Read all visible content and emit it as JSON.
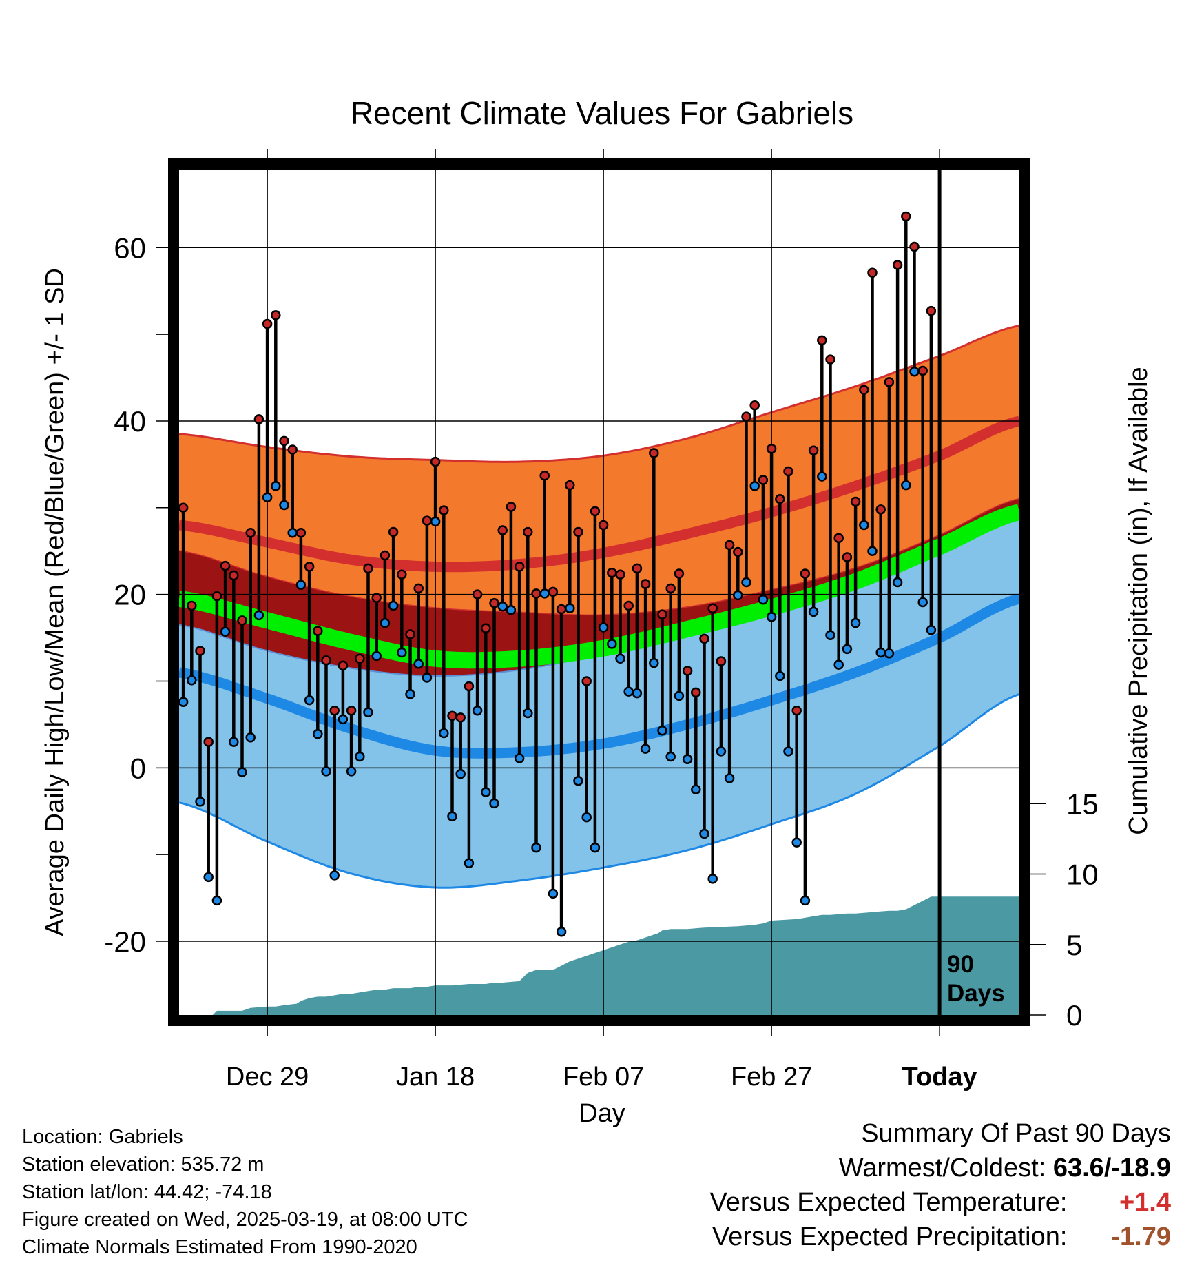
{
  "chart_data": {
    "type": "line",
    "title": "Recent Climate Values For Gabriels",
    "xlabel": "Day",
    "ylabel": "Average Daily High/Low/Mean (Red/Blue/Green) +/- 1 SD",
    "y2label": "Cumulative Precipitation (in), If Available",
    "ylim": [
      -28.5,
      69
    ],
    "y2lim": [
      0,
      60
    ],
    "yticks": [
      "-20",
      "0",
      "20",
      "40",
      "60"
    ],
    "y2ticks": [
      "0",
      "5",
      "10",
      "15"
    ],
    "xlim": [
      -10.5,
      89.5
    ],
    "xticks": [
      {
        "day": 0,
        "label": "Dec 29"
      },
      {
        "day": 20,
        "label": "Jan 18"
      },
      {
        "day": 40,
        "label": "Feb 07"
      },
      {
        "day": 60,
        "label": "Feb 27"
      },
      {
        "day": 80,
        "label": "Today"
      }
    ],
    "today_marker": {
      "day": 80,
      "label_line1": "90",
      "label_line2": "Days"
    },
    "grid": true,
    "normals": {
      "day": [
        -10.5,
        0,
        10,
        20,
        30,
        40,
        50,
        60,
        70,
        80,
        89.5
      ],
      "high_mean": [
        28.0,
        26.0,
        24.0,
        23.2,
        23.5,
        24.8,
        27.0,
        29.5,
        32.5,
        36.0,
        40.0
      ],
      "high_sd_upper": [
        38.5,
        37.0,
        35.9,
        35.5,
        35.3,
        36.0,
        38.0,
        41.0,
        44.0,
        47.5,
        51.0
      ],
      "high_sd_lower": [
        25.0,
        22.0,
        19.7,
        18.4,
        17.9,
        17.6,
        18.5,
        20.5,
        23.0,
        26.8,
        31.0
      ],
      "low_mean": [
        11.0,
        8.0,
        4.5,
        2.0,
        1.8,
        2.8,
        5.0,
        7.8,
        11.0,
        15.0,
        19.5
      ],
      "low_sd_upper": [
        16.5,
        13.5,
        11.5,
        10.6,
        11.3,
        13.2,
        15.8,
        18.5,
        22.0,
        26.0,
        29.0
      ],
      "low_sd_lower": [
        -4.0,
        -8.5,
        -12.2,
        -13.8,
        -13.0,
        -11.5,
        -9.5,
        -6.5,
        -3.0,
        2.5,
        8.5
      ],
      "mean": [
        19.5,
        17.0,
        14.5,
        12.6,
        12.6,
        13.8,
        16.0,
        18.5,
        21.5,
        25.5,
        29.5
      ]
    },
    "series": [
      {
        "name": "High",
        "color": "#c62828",
        "values": [
          30.0,
          18.7,
          13.5,
          3.0,
          19.8,
          23.3,
          22.2,
          17.0,
          27.1,
          40.2,
          51.2,
          52.2,
          37.7,
          36.7,
          27.1,
          23.2,
          15.8,
          12.4,
          6.6,
          11.8,
          6.6,
          12.6,
          23.0,
          19.6,
          24.5,
          27.2,
          22.3,
          15.4,
          20.7,
          28.5,
          35.3,
          29.7,
          6.0,
          5.8,
          9.4,
          20.0,
          16.1,
          19.0,
          27.4,
          30.1,
          23.2,
          27.2,
          20.1,
          33.7,
          20.3,
          18.3,
          32.6,
          27.2,
          10.0,
          29.6,
          28.0,
          22.5,
          22.3,
          18.7,
          23.0,
          21.2,
          36.3,
          17.7,
          20.7,
          22.4,
          11.2,
          8.7,
          14.9,
          18.4,
          12.3,
          25.7,
          24.9,
          40.5,
          41.8,
          33.2,
          36.8,
          31.0,
          34.2,
          6.6,
          22.4,
          36.6,
          49.3,
          47.1,
          26.5,
          24.3,
          30.7,
          43.6,
          57.1,
          29.8,
          44.5,
          58.0,
          63.6,
          60.1,
          45.8,
          52.7
        ]
      },
      {
        "name": "Low",
        "color": "#1e88e5",
        "values": [
          7.6,
          10.1,
          -3.9,
          -12.6,
          -15.3,
          15.7,
          3.0,
          -0.5,
          3.5,
          17.6,
          31.2,
          32.5,
          30.3,
          27.1,
          21.1,
          7.8,
          3.9,
          -0.4,
          -12.4,
          5.6,
          -0.4,
          1.3,
          6.4,
          12.9,
          16.7,
          18.7,
          13.3,
          8.5,
          12.0,
          10.4,
          28.4,
          4.0,
          -5.6,
          -0.7,
          -11.0,
          6.6,
          -2.8,
          -4.1,
          18.6,
          18.2,
          1.1,
          6.3,
          -9.2,
          20.1,
          -14.5,
          -18.9,
          18.4,
          -1.5,
          -5.7,
          -9.2,
          16.2,
          14.3,
          12.6,
          8.8,
          8.6,
          2.2,
          12.1,
          4.3,
          1.3,
          8.3,
          1.0,
          -2.5,
          -7.6,
          -12.8,
          1.9,
          -1.2,
          19.9,
          21.4,
          32.5,
          19.4,
          17.4,
          10.6,
          1.9,
          -8.6,
          -15.3,
          18.0,
          33.6,
          15.3,
          11.9,
          13.7,
          16.7,
          28.0,
          25.0,
          13.3,
          13.2,
          21.4,
          32.6,
          45.7,
          19.1,
          15.9
        ]
      },
      {
        "name": "Cumulative Precipitation",
        "color": "#4a99a3",
        "x": [
          -10.5,
          -6.5,
          -6.0,
          -3.0,
          -2.0,
          0,
          1,
          2,
          3.5,
          4,
          5,
          6,
          7,
          8,
          9,
          10,
          11,
          12,
          13,
          14,
          15,
          16,
          17,
          18,
          19,
          20,
          22,
          24,
          25,
          26,
          27,
          28,
          30,
          31,
          32,
          34,
          36,
          38,
          40,
          42,
          43,
          44,
          46,
          46.5,
          47,
          48,
          50,
          52,
          56,
          58,
          59,
          60,
          63,
          65,
          66,
          67,
          69,
          70,
          72,
          74,
          75,
          76,
          78,
          79,
          89.5
        ],
        "values": [
          0,
          0,
          0.3,
          0.3,
          0.5,
          0.6,
          0.6,
          0.7,
          0.8,
          1.0,
          1.2,
          1.3,
          1.3,
          1.4,
          1.5,
          1.5,
          1.6,
          1.7,
          1.8,
          1.8,
          1.9,
          1.9,
          1.9,
          2.0,
          2.0,
          2.1,
          2.1,
          2.2,
          2.2,
          2.2,
          2.3,
          2.3,
          2.4,
          3.0,
          3.2,
          3.2,
          3.8,
          4.2,
          4.6,
          5.0,
          5.2,
          5.3,
          5.7,
          5.8,
          6.0,
          6.1,
          6.1,
          6.2,
          6.3,
          6.4,
          6.5,
          6.7,
          6.8,
          7.0,
          7.1,
          7.1,
          7.2,
          7.2,
          7.3,
          7.4,
          7.4,
          7.5,
          8.1,
          8.4,
          8.4
        ]
      }
    ]
  },
  "footer": {
    "location": "Location: Gabriels",
    "elevation": "Station elevation: 535.72 m",
    "latlon": "Station lat/lon: 44.42; -74.18",
    "created": "Figure created on Wed, 2025-03-19, at 08:00 UTC",
    "normals": "Climate Normals Estimated From 1990-2020"
  },
  "summary": {
    "heading": "Summary Of Past 90 Days",
    "warm_cold_label": "Warmest/Coldest:",
    "warm_cold_value": "63.6/-18.9",
    "temp_label": "Versus Expected Temperature:",
    "temp_value": "+1.4",
    "temp_color": "#d32f2f",
    "precip_label": "Versus Expected Precipitation:",
    "precip_value": "-1.79",
    "precip_color": "#a0522d"
  },
  "colors": {
    "high_band": "#f37a2c",
    "high_line": "#d32f2f",
    "overlap_band": "#9b1313",
    "low_band": "#83c2e9",
    "low_line": "#1e88e5",
    "mean_band": "#00ee00",
    "precip_fill": "#4a99a3"
  }
}
